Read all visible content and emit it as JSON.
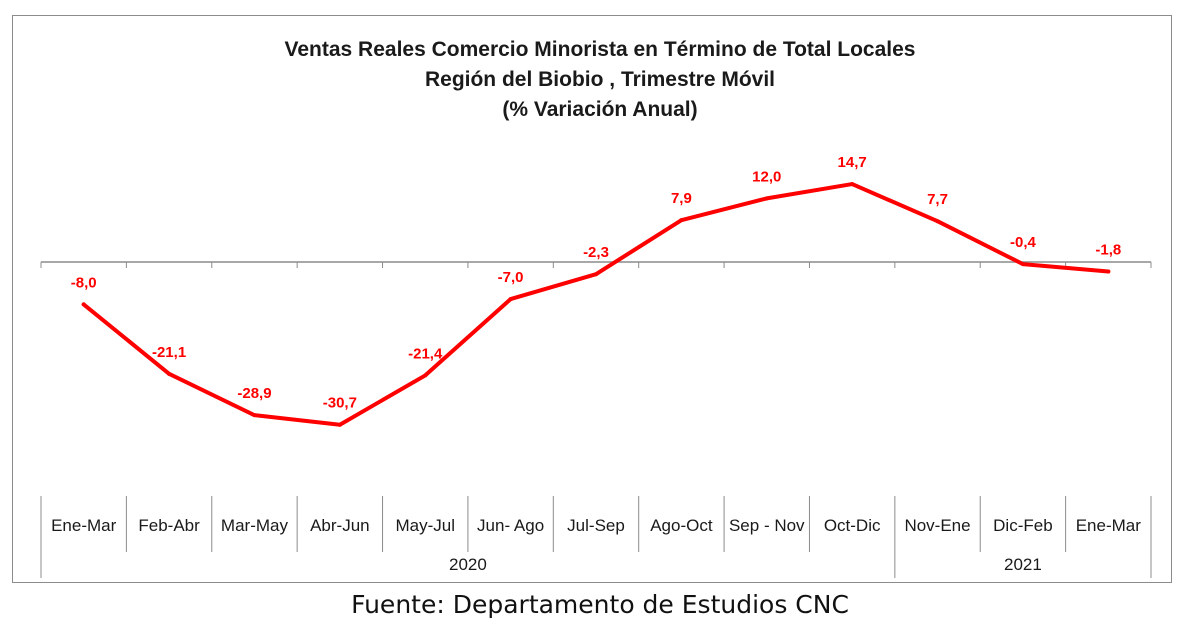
{
  "chart_data": {
    "type": "line",
    "title_lines": [
      "Ventas Reales Comercio Minorista  en Término de Total Locales",
      "Región del Biobio , Trimestre Móvil",
      "(% Variación Anual)"
    ],
    "categories": [
      "Ene-Mar",
      "Feb-Abr",
      "Mar-May",
      "Abr-Jun",
      "May-Jul",
      "Jun- Ago",
      "Jul-Sep",
      "Ago-Oct",
      "Sep - Nov",
      "Oct-Dic",
      "Nov-Ene",
      "Dic-Feb",
      "Ene-Mar"
    ],
    "years": [
      {
        "label": "2020",
        "start": 0,
        "end": 9
      },
      {
        "label": "2021",
        "start": 10,
        "end": 12
      }
    ],
    "series": [
      {
        "values": [
          -8.0,
          -21.1,
          -28.9,
          -30.7,
          -21.4,
          -7.0,
          -2.3,
          7.9,
          12.0,
          14.7,
          7.7,
          -0.4,
          -1.8
        ],
        "labels": [
          "-8,0",
          "-21,1",
          "-28,9",
          "-30,7",
          "-21,4",
          "-7,0",
          "-2,3",
          "7,9",
          "12,0",
          "14,7",
          "7,7",
          "-0,4",
          "-1,8"
        ],
        "color": "#ff0000"
      }
    ],
    "ylim": [
      -35,
      20
    ],
    "grid": false,
    "xlabel": "",
    "ylabel": ""
  },
  "source": "Fuente: Departamento de Estudios CNC",
  "colors": {
    "line": "#ff0000",
    "axis": "#8c8c8c",
    "text": "#1a1a1a"
  }
}
